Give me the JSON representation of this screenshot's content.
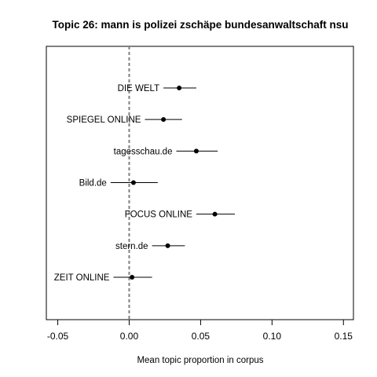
{
  "chart_data": {
    "type": "scatter",
    "title": "Topic 26: mann is polizei zschäpe bundesanwaltschaft nsu",
    "xlabel": "Mean topic proportion in corpus",
    "ylabel": "",
    "xlim": [
      -0.058,
      0.157
    ],
    "x_ticks": [
      -0.05,
      0.0,
      0.05,
      0.1,
      0.15
    ],
    "x_tick_labels": [
      "-0.05",
      "0.00",
      "0.05",
      "0.10",
      "0.15"
    ],
    "reference_line": {
      "x": 0.0,
      "style": "dashed",
      "color": "#808080"
    },
    "grid": false,
    "points": [
      {
        "label": "DIE WELT",
        "estimate": 0.035,
        "ci_low": 0.024,
        "ci_high": 0.047
      },
      {
        "label": "SPIEGEL ONLINE",
        "estimate": 0.024,
        "ci_low": 0.011,
        "ci_high": 0.037
      },
      {
        "label": "tagesschau.de",
        "estimate": 0.047,
        "ci_low": 0.033,
        "ci_high": 0.062
      },
      {
        "label": "Bild.de",
        "estimate": 0.003,
        "ci_low": -0.013,
        "ci_high": 0.02
      },
      {
        "label": "FOCUS ONLINE",
        "estimate": 0.06,
        "ci_low": 0.047,
        "ci_high": 0.074
      },
      {
        "label": "stern.de",
        "estimate": 0.027,
        "ci_low": 0.016,
        "ci_high": 0.039
      },
      {
        "label": "ZEIT ONLINE",
        "estimate": 0.002,
        "ci_low": -0.011,
        "ci_high": 0.016
      }
    ]
  }
}
